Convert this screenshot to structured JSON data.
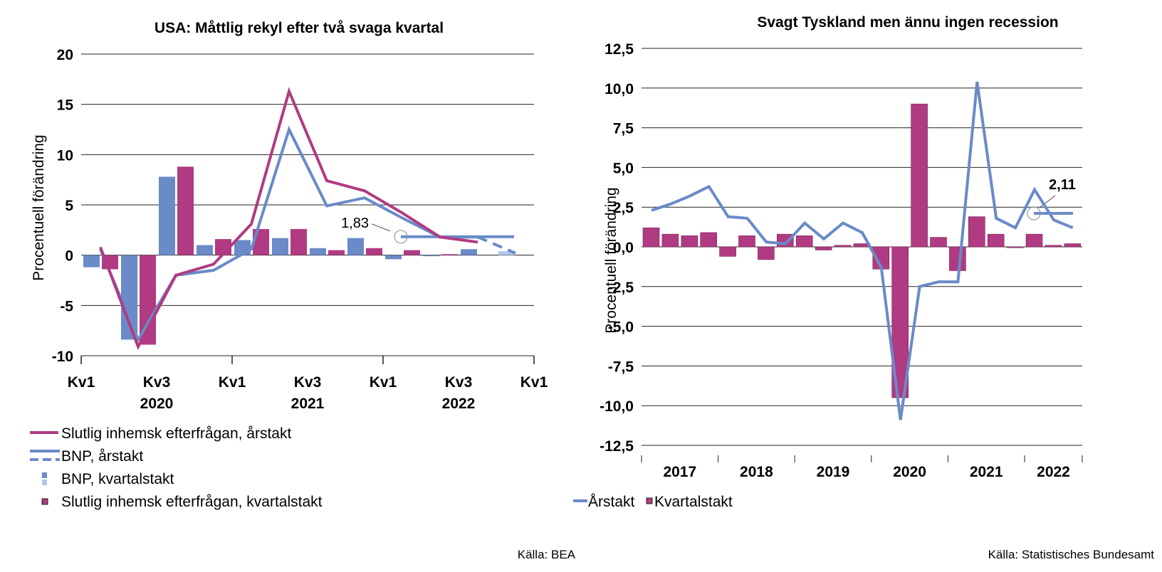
{
  "chart_data": [
    {
      "type": "bar",
      "title": "USA: Måttlig rekyl efter två svaga kvartal",
      "ylabel": "Procentuell förändring",
      "ylim": [
        -10,
        20
      ],
      "yticks": [
        "20",
        "15",
        "10",
        "5",
        "0",
        "-5",
        "-10"
      ],
      "xtick_labels": [
        "Kv1",
        "Kv3",
        "Kv1",
        "Kv3",
        "Kv1",
        "Kv3",
        "Kv1"
      ],
      "year_labels": [
        "2020",
        "2021",
        "2022"
      ],
      "grid": true,
      "quarters": [
        "2020 Kv1",
        "2020 Kv2",
        "2020 Kv3",
        "2020 Kv4",
        "2021 Kv1",
        "2021 Kv2",
        "2021 Kv3",
        "2021 Kv4",
        "2022 Kv1",
        "2022 Kv2",
        "2022 Kv3",
        "2022 Kv4"
      ],
      "series": [
        {
          "name": "BNP, kvartalstakt",
          "kind": "bar",
          "color": "#6a8ac8",
          "values": [
            -1.2,
            -8.4,
            7.8,
            1.0,
            1.5,
            1.7,
            0.7,
            1.7,
            -0.4,
            -0.1,
            0.6,
            0.4
          ],
          "forecast_from_index": 11,
          "forecast_color": "#b3c6e8"
        },
        {
          "name": "Slutlig inhemsk efterfrågan, kvartalstakt",
          "kind": "bar",
          "color": "#b03b82",
          "values": [
            -1.4,
            -8.9,
            8.8,
            1.6,
            2.6,
            2.6,
            0.5,
            0.7,
            0.5,
            0.1,
            null,
            null
          ]
        },
        {
          "name": "BNP, årstakt",
          "kind": "line",
          "color": "#6a8ac8",
          "values": [
            0.6,
            -8.4,
            -2.0,
            -1.5,
            0.6,
            12.5,
            4.9,
            5.7,
            3.7,
            1.8,
            1.8,
            0.2
          ],
          "forecast_from_index": 10
        },
        {
          "name": "Slutlig inhemsk efterfrågan, årstakt",
          "kind": "line",
          "color": "#b03b82",
          "values": [
            0.8,
            -9.1,
            -2.0,
            -0.9,
            3.1,
            16.3,
            7.4,
            6.4,
            4.2,
            1.8,
            1.3,
            null
          ]
        }
      ],
      "reference_line": {
        "value": 1.83,
        "label": "1,83"
      },
      "legend": {
        "position": "bottom",
        "items": [
          "Slutlig inhemsk efterfrågan, årstakt",
          "BNP, årstakt",
          "BNP, kvartalstakt",
          "Slutlig inhemsk efterfrågan, kvartalstakt"
        ]
      },
      "source": "Källa: BEA"
    },
    {
      "type": "bar",
      "title": "Svagt Tyskland men ännu ingen recession",
      "ylabel": "Procentuell förändring",
      "ylim": [
        -12.5,
        12.5
      ],
      "yticks": [
        "12,5",
        "10,0",
        "7,5",
        "5,0",
        "2,5",
        "0,0",
        "-2,5",
        "-5,0",
        "-7,5",
        "-10,0",
        "-12,5"
      ],
      "year_labels": [
        "2017",
        "2018",
        "2019",
        "2020",
        "2021",
        "2022"
      ],
      "grid": true,
      "series": [
        {
          "name": "Kvartalstakt",
          "kind": "bar",
          "color": "#b03b82",
          "values": [
            1.2,
            0.8,
            0.7,
            0.9,
            -0.6,
            0.7,
            -0.8,
            0.8,
            0.7,
            -0.2,
            0.1,
            0.2,
            -1.4,
            -9.5,
            9.0,
            0.6,
            -1.5,
            1.9,
            0.8,
            0.0,
            0.8,
            0.1,
            0.2
          ]
        },
        {
          "name": "Årstakt",
          "kind": "line",
          "color": "#6a8ac8",
          "values": [
            2.3,
            2.7,
            3.2,
            3.8,
            1.9,
            1.8,
            0.3,
            0.2,
            1.5,
            0.5,
            1.5,
            0.9,
            -1.3,
            -10.9,
            -2.5,
            -2.2,
            -2.2,
            10.4,
            1.8,
            1.2,
            3.6,
            1.7,
            1.2
          ]
        }
      ],
      "reference_line": {
        "value": 2.11,
        "label": "2,11"
      },
      "legend": {
        "position": "bottom",
        "items": [
          "Årstakt",
          "Kvartalstakt"
        ]
      },
      "source": "Källa: Statistisches Bundesamt"
    }
  ]
}
